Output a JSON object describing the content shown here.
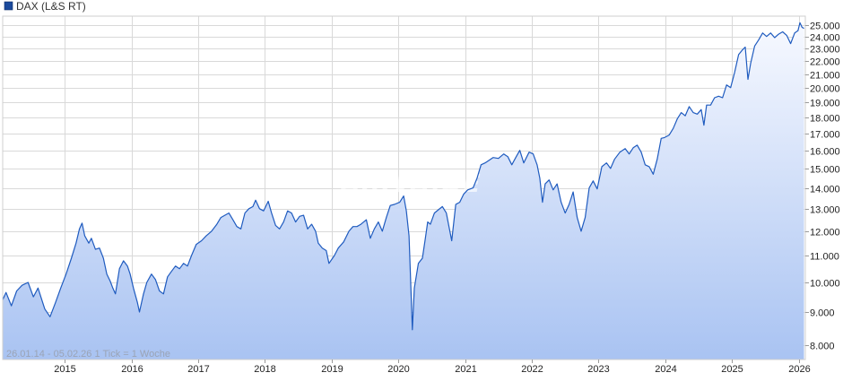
{
  "legend": {
    "label": "DAX (L&S RT)"
  },
  "watermark": "ARIVA.DE",
  "range_info": "26.01.14 - 05.02.26    1 Tick = 1 Woche",
  "colors": {
    "line": "#1f5bbf",
    "fill_top": "#f7f9ff",
    "fill_bottom": "#a9c3f2",
    "swatch": "#1b4a9c"
  },
  "chart_data": {
    "type": "area",
    "title": "",
    "xlabel": "",
    "ylabel": "",
    "series": [
      {
        "name": "DAX (L&S RT)",
        "points": [
          [
            2014.07,
            9400
          ],
          [
            2014.12,
            9650
          ],
          [
            2014.2,
            9200
          ],
          [
            2014.28,
            9700
          ],
          [
            2014.36,
            9900
          ],
          [
            2014.45,
            10000
          ],
          [
            2014.53,
            9500
          ],
          [
            2014.6,
            9800
          ],
          [
            2014.7,
            9100
          ],
          [
            2014.78,
            8850
          ],
          [
            2014.86,
            9300
          ],
          [
            2014.94,
            9800
          ],
          [
            2015.02,
            10300
          ],
          [
            2015.1,
            10900
          ],
          [
            2015.17,
            11500
          ],
          [
            2015.22,
            12100
          ],
          [
            2015.26,
            12350
          ],
          [
            2015.3,
            11800
          ],
          [
            2015.36,
            11500
          ],
          [
            2015.4,
            11700
          ],
          [
            2015.46,
            11250
          ],
          [
            2015.52,
            11300
          ],
          [
            2015.58,
            10900
          ],
          [
            2015.63,
            10300
          ],
          [
            2015.68,
            10050
          ],
          [
            2015.72,
            9800
          ],
          [
            2015.76,
            9600
          ],
          [
            2015.82,
            10500
          ],
          [
            2015.88,
            10800
          ],
          [
            2015.94,
            10600
          ],
          [
            2015.98,
            10300
          ],
          [
            2016.03,
            9800
          ],
          [
            2016.09,
            9300
          ],
          [
            2016.12,
            9000
          ],
          [
            2016.18,
            9600
          ],
          [
            2016.23,
            10000
          ],
          [
            2016.3,
            10300
          ],
          [
            2016.36,
            10100
          ],
          [
            2016.42,
            9700
          ],
          [
            2016.48,
            9600
          ],
          [
            2016.54,
            10200
          ],
          [
            2016.6,
            10400
          ],
          [
            2016.66,
            10600
          ],
          [
            2016.72,
            10500
          ],
          [
            2016.78,
            10700
          ],
          [
            2016.84,
            10600
          ],
          [
            2016.9,
            11000
          ],
          [
            2016.97,
            11450
          ],
          [
            2017.05,
            11600
          ],
          [
            2017.12,
            11800
          ],
          [
            2017.2,
            12000
          ],
          [
            2017.28,
            12300
          ],
          [
            2017.34,
            12600
          ],
          [
            2017.4,
            12700
          ],
          [
            2017.46,
            12800
          ],
          [
            2017.52,
            12500
          ],
          [
            2017.58,
            12200
          ],
          [
            2017.64,
            12100
          ],
          [
            2017.7,
            12800
          ],
          [
            2017.76,
            13000
          ],
          [
            2017.82,
            13100
          ],
          [
            2017.86,
            13400
          ],
          [
            2017.92,
            13000
          ],
          [
            2017.98,
            12900
          ],
          [
            2018.05,
            13350
          ],
          [
            2018.1,
            12800
          ],
          [
            2018.16,
            12250
          ],
          [
            2018.22,
            12100
          ],
          [
            2018.28,
            12400
          ],
          [
            2018.34,
            12900
          ],
          [
            2018.4,
            12800
          ],
          [
            2018.46,
            12400
          ],
          [
            2018.52,
            12650
          ],
          [
            2018.58,
            12700
          ],
          [
            2018.64,
            12100
          ],
          [
            2018.7,
            12300
          ],
          [
            2018.76,
            12000
          ],
          [
            2018.8,
            11500
          ],
          [
            2018.86,
            11300
          ],
          [
            2018.92,
            11200
          ],
          [
            2018.96,
            10700
          ],
          [
            2019.04,
            11000
          ],
          [
            2019.1,
            11300
          ],
          [
            2019.18,
            11550
          ],
          [
            2019.26,
            12000
          ],
          [
            2019.32,
            12200
          ],
          [
            2019.38,
            12200
          ],
          [
            2019.44,
            12300
          ],
          [
            2019.52,
            12500
          ],
          [
            2019.58,
            11700
          ],
          [
            2019.64,
            12100
          ],
          [
            2019.7,
            12400
          ],
          [
            2019.76,
            12000
          ],
          [
            2019.82,
            12600
          ],
          [
            2019.88,
            13150
          ],
          [
            2019.94,
            13200
          ],
          [
            2020.02,
            13300
          ],
          [
            2020.08,
            13600
          ],
          [
            2020.12,
            12900
          ],
          [
            2020.16,
            11800
          ],
          [
            2020.19,
            9700
          ],
          [
            2020.21,
            8450
          ],
          [
            2020.24,
            9800
          ],
          [
            2020.3,
            10700
          ],
          [
            2020.36,
            10900
          ],
          [
            2020.4,
            11600
          ],
          [
            2020.44,
            12400
          ],
          [
            2020.48,
            12300
          ],
          [
            2020.54,
            12800
          ],
          [
            2020.6,
            12950
          ],
          [
            2020.66,
            13100
          ],
          [
            2020.72,
            12800
          ],
          [
            2020.8,
            11600
          ],
          [
            2020.86,
            13200
          ],
          [
            2020.92,
            13300
          ],
          [
            2020.98,
            13700
          ],
          [
            2021.04,
            13900
          ],
          [
            2021.12,
            14000
          ],
          [
            2021.18,
            14500
          ],
          [
            2021.24,
            15200
          ],
          [
            2021.3,
            15300
          ],
          [
            2021.36,
            15450
          ],
          [
            2021.42,
            15600
          ],
          [
            2021.5,
            15550
          ],
          [
            2021.58,
            15800
          ],
          [
            2021.64,
            15650
          ],
          [
            2021.7,
            15200
          ],
          [
            2021.76,
            15600
          ],
          [
            2021.82,
            16000
          ],
          [
            2021.88,
            15300
          ],
          [
            2021.96,
            15900
          ],
          [
            2022.02,
            15800
          ],
          [
            2022.08,
            15200
          ],
          [
            2022.12,
            14500
          ],
          [
            2022.16,
            13300
          ],
          [
            2022.2,
            14200
          ],
          [
            2022.26,
            14400
          ],
          [
            2022.32,
            13900
          ],
          [
            2022.38,
            14200
          ],
          [
            2022.44,
            13300
          ],
          [
            2022.5,
            12800
          ],
          [
            2022.56,
            13200
          ],
          [
            2022.62,
            13800
          ],
          [
            2022.68,
            12600
          ],
          [
            2022.74,
            12000
          ],
          [
            2022.8,
            12600
          ],
          [
            2022.86,
            14000
          ],
          [
            2022.92,
            14350
          ],
          [
            2022.98,
            13950
          ],
          [
            2023.05,
            15100
          ],
          [
            2023.12,
            15300
          ],
          [
            2023.18,
            15000
          ],
          [
            2023.24,
            15500
          ],
          [
            2023.32,
            15900
          ],
          [
            2023.4,
            16100
          ],
          [
            2023.46,
            15800
          ],
          [
            2023.52,
            16150
          ],
          [
            2023.58,
            16300
          ],
          [
            2023.64,
            15900
          ],
          [
            2023.7,
            15200
          ],
          [
            2023.76,
            15100
          ],
          [
            2023.82,
            14700
          ],
          [
            2023.88,
            15500
          ],
          [
            2023.94,
            16700
          ],
          [
            2023.99,
            16750
          ],
          [
            2024.06,
            16900
          ],
          [
            2024.12,
            17300
          ],
          [
            2024.18,
            17900
          ],
          [
            2024.24,
            18300
          ],
          [
            2024.3,
            18100
          ],
          [
            2024.36,
            18700
          ],
          [
            2024.42,
            18300
          ],
          [
            2024.48,
            18200
          ],
          [
            2024.54,
            18500
          ],
          [
            2024.58,
            17500
          ],
          [
            2024.62,
            18800
          ],
          [
            2024.68,
            18800
          ],
          [
            2024.74,
            19300
          ],
          [
            2024.8,
            19400
          ],
          [
            2024.86,
            19300
          ],
          [
            2024.92,
            20200
          ],
          [
            2024.98,
            20000
          ],
          [
            2025.04,
            21100
          ],
          [
            2025.1,
            22500
          ],
          [
            2025.16,
            22900
          ],
          [
            2025.2,
            23100
          ],
          [
            2025.24,
            20600
          ],
          [
            2025.28,
            21800
          ],
          [
            2025.34,
            23200
          ],
          [
            2025.4,
            23700
          ],
          [
            2025.46,
            24300
          ],
          [
            2025.52,
            24000
          ],
          [
            2025.58,
            24300
          ],
          [
            2025.64,
            23900
          ],
          [
            2025.7,
            24200
          ],
          [
            2025.76,
            24400
          ],
          [
            2025.82,
            24100
          ],
          [
            2025.88,
            23400
          ],
          [
            2025.94,
            24300
          ],
          [
            2025.99,
            24500
          ],
          [
            2026.02,
            25200
          ],
          [
            2026.05,
            24800
          ],
          [
            2026.08,
            24700
          ]
        ]
      }
    ],
    "x_ticks": [
      "2015",
      "2016",
      "2017",
      "2018",
      "2019",
      "2020",
      "2021",
      "2022",
      "2023",
      "2024",
      "2025",
      "2026"
    ],
    "xlim": [
      2014.07,
      2026.1
    ],
    "y_ticks": [
      8000,
      9000,
      10000,
      11000,
      12000,
      13000,
      14000,
      15000,
      16000,
      17000,
      18000,
      19000,
      20000,
      21000,
      22000,
      23000,
      24000,
      25000
    ],
    "y_tick_labels": [
      "8.000",
      "9.000",
      "10.000",
      "11.000",
      "12.000",
      "13.000",
      "14.000",
      "15.000",
      "16.000",
      "17.000",
      "18.000",
      "19.000",
      "20.000",
      "21.000",
      "22.000",
      "23.000",
      "24.000",
      "25.000"
    ],
    "ylim": [
      7600,
      25800
    ],
    "y_scale": "log",
    "grid": true,
    "legend_position": "top-left"
  }
}
